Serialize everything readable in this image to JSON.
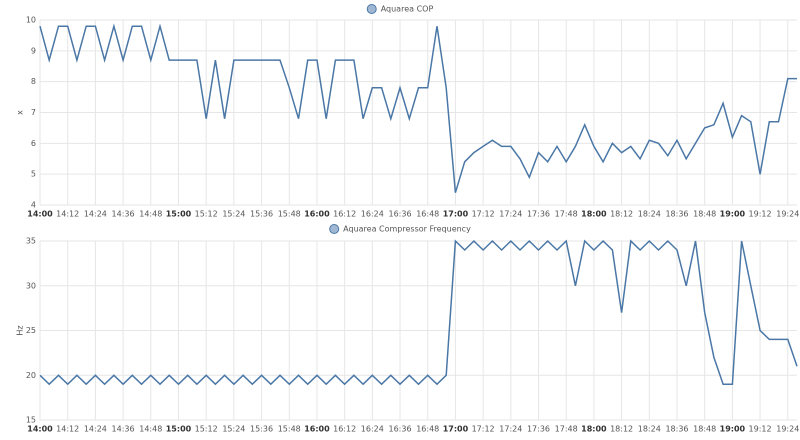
{
  "chart_data": [
    {
      "type": "line",
      "y_label": "x",
      "grid": true,
      "x": [
        "14:00",
        "14:04",
        "14:08",
        "14:12",
        "14:16",
        "14:20",
        "14:24",
        "14:28",
        "14:32",
        "14:36",
        "14:40",
        "14:44",
        "14:48",
        "14:52",
        "14:56",
        "15:00",
        "15:04",
        "15:08",
        "15:12",
        "15:16",
        "15:20",
        "15:24",
        "15:28",
        "15:32",
        "15:36",
        "15:40",
        "15:44",
        "15:48",
        "15:52",
        "15:56",
        "16:00",
        "16:04",
        "16:08",
        "16:12",
        "16:16",
        "16:20",
        "16:24",
        "16:28",
        "16:32",
        "16:36",
        "16:40",
        "16:44",
        "16:48",
        "16:52",
        "16:56",
        "17:00",
        "17:04",
        "17:08",
        "17:12",
        "17:16",
        "17:20",
        "17:24",
        "17:28",
        "17:32",
        "17:36",
        "17:40",
        "17:44",
        "17:48",
        "17:52",
        "17:56",
        "18:00",
        "18:04",
        "18:08",
        "18:12",
        "18:16",
        "18:20",
        "18:24",
        "18:28",
        "18:32",
        "18:36",
        "18:40",
        "18:44",
        "18:48",
        "18:52",
        "18:56",
        "19:00",
        "19:04",
        "19:08",
        "19:12",
        "19:16",
        "19:20",
        "19:24",
        "19:28"
      ],
      "series": [
        {
          "name": "Aquarea COP",
          "color": "#4a77a6",
          "values": [
            9.8,
            8.7,
            9.8,
            9.8,
            8.7,
            9.8,
            9.8,
            8.7,
            9.8,
            8.7,
            9.8,
            9.8,
            8.7,
            9.8,
            8.7,
            8.7,
            8.7,
            8.7,
            6.8,
            8.7,
            6.8,
            8.7,
            8.7,
            8.7,
            8.7,
            8.7,
            8.7,
            7.8,
            6.8,
            8.7,
            8.7,
            6.8,
            8.7,
            8.7,
            8.7,
            6.8,
            7.8,
            7.8,
            6.8,
            7.8,
            6.8,
            7.8,
            7.8,
            9.8,
            7.8,
            4.4,
            5.4,
            5.7,
            5.9,
            6.1,
            5.9,
            5.9,
            5.5,
            4.9,
            5.7,
            5.4,
            5.9,
            5.4,
            5.9,
            6.6,
            5.9,
            5.4,
            6.0,
            5.7,
            5.9,
            5.5,
            6.1,
            6.0,
            5.6,
            6.1,
            5.5,
            6.0,
            6.5,
            6.6,
            7.3,
            6.2,
            6.9,
            6.7,
            5.0,
            6.7,
            6.7,
            8.1,
            8.1
          ]
        }
      ],
      "xlim": [
        "14:00",
        "19:28"
      ],
      "xticks": [
        "14:00",
        "14:12",
        "14:24",
        "14:36",
        "14:48",
        "15:00",
        "15:12",
        "15:24",
        "15:36",
        "15:48",
        "16:00",
        "16:12",
        "16:24",
        "16:36",
        "16:48",
        "17:00",
        "17:12",
        "17:24",
        "17:36",
        "17:48",
        "18:00",
        "18:12",
        "18:24",
        "18:36",
        "18:48",
        "19:00",
        "19:12",
        "19:24"
      ],
      "ylim": [
        4,
        10
      ],
      "yticks": [
        4,
        5,
        6,
        7,
        8,
        9,
        10
      ]
    },
    {
      "type": "line",
      "y_label": "Hz",
      "grid": true,
      "x": [
        "14:00",
        "14:04",
        "14:08",
        "14:12",
        "14:16",
        "14:20",
        "14:24",
        "14:28",
        "14:32",
        "14:36",
        "14:40",
        "14:44",
        "14:48",
        "14:52",
        "14:56",
        "15:00",
        "15:04",
        "15:08",
        "15:12",
        "15:16",
        "15:20",
        "15:24",
        "15:28",
        "15:32",
        "15:36",
        "15:40",
        "15:44",
        "15:48",
        "15:52",
        "15:56",
        "16:00",
        "16:04",
        "16:08",
        "16:12",
        "16:16",
        "16:20",
        "16:24",
        "16:28",
        "16:32",
        "16:36",
        "16:40",
        "16:44",
        "16:48",
        "16:52",
        "16:56",
        "17:00",
        "17:04",
        "17:08",
        "17:12",
        "17:16",
        "17:20",
        "17:24",
        "17:28",
        "17:32",
        "17:36",
        "17:40",
        "17:44",
        "17:48",
        "17:52",
        "17:56",
        "18:00",
        "18:04",
        "18:08",
        "18:12",
        "18:16",
        "18:20",
        "18:24",
        "18:28",
        "18:32",
        "18:36",
        "18:40",
        "18:44",
        "18:48",
        "18:52",
        "18:56",
        "19:00",
        "19:04",
        "19:08",
        "19:12",
        "19:16",
        "19:20",
        "19:24",
        "19:28"
      ],
      "series": [
        {
          "name": "Aquarea Compressor Frequency",
          "color": "#4a77a6",
          "values": [
            20,
            19,
            20,
            19,
            20,
            19,
            20,
            19,
            20,
            19,
            20,
            19,
            20,
            19,
            20,
            19,
            20,
            19,
            20,
            19,
            20,
            19,
            20,
            19,
            20,
            19,
            20,
            19,
            20,
            19,
            20,
            19,
            20,
            19,
            20,
            19,
            20,
            19,
            20,
            19,
            20,
            19,
            20,
            19,
            20,
            35,
            34,
            35,
            34,
            35,
            34,
            35,
            34,
            35,
            34,
            35,
            34,
            35,
            30,
            35,
            34,
            35,
            34,
            27,
            35,
            34,
            35,
            34,
            35,
            34,
            30,
            35,
            27,
            22,
            19,
            19,
            35,
            30,
            25,
            24,
            24,
            24,
            21
          ]
        }
      ],
      "xlim": [
        "14:00",
        "19:28"
      ],
      "xticks": [
        "14:00",
        "14:12",
        "14:24",
        "14:36",
        "14:48",
        "15:00",
        "15:12",
        "15:24",
        "15:36",
        "15:48",
        "16:00",
        "16:12",
        "16:24",
        "16:36",
        "16:48",
        "17:00",
        "17:12",
        "17:24",
        "17:36",
        "17:48",
        "18:00",
        "18:12",
        "18:24",
        "18:36",
        "18:48",
        "19:00",
        "19:12",
        "19:24"
      ],
      "ylim": [
        15,
        35
      ],
      "yticks": [
        15,
        20,
        25,
        30,
        35
      ]
    }
  ]
}
